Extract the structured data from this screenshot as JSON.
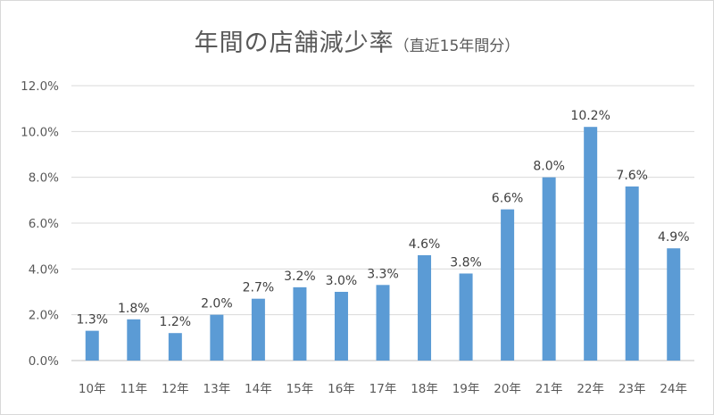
{
  "chart_data": {
    "type": "bar",
    "title": "年間の店舗減少率",
    "subtitle": "（直近15年間分）",
    "xlabel": "",
    "ylabel": "",
    "categories": [
      "10年",
      "11年",
      "12年",
      "13年",
      "14年",
      "15年",
      "16年",
      "17年",
      "18年",
      "19年",
      "20年",
      "21年",
      "22年",
      "23年",
      "24年"
    ],
    "values": [
      1.3,
      1.8,
      1.2,
      2.0,
      2.7,
      3.2,
      3.0,
      3.3,
      4.6,
      3.8,
      6.6,
      8.0,
      10.2,
      7.6,
      4.9
    ],
    "data_labels": [
      "1.3%",
      "1.8%",
      "1.2%",
      "2.0%",
      "2.7%",
      "3.2%",
      "3.0%",
      "3.3%",
      "4.6%",
      "3.8%",
      "6.6%",
      "8.0%",
      "10.2%",
      "7.6%",
      "4.9%"
    ],
    "y_ticks": [
      0,
      2,
      4,
      6,
      8,
      10,
      12
    ],
    "y_tick_labels": [
      "0.0%",
      "2.0%",
      "4.0%",
      "6.0%",
      "8.0%",
      "10.0%",
      "12.0%"
    ],
    "ylim": [
      0,
      12
    ],
    "grid": true,
    "legend": "none",
    "bar_color": "#5b9bd5",
    "grid_color": "#d9d9d9"
  }
}
